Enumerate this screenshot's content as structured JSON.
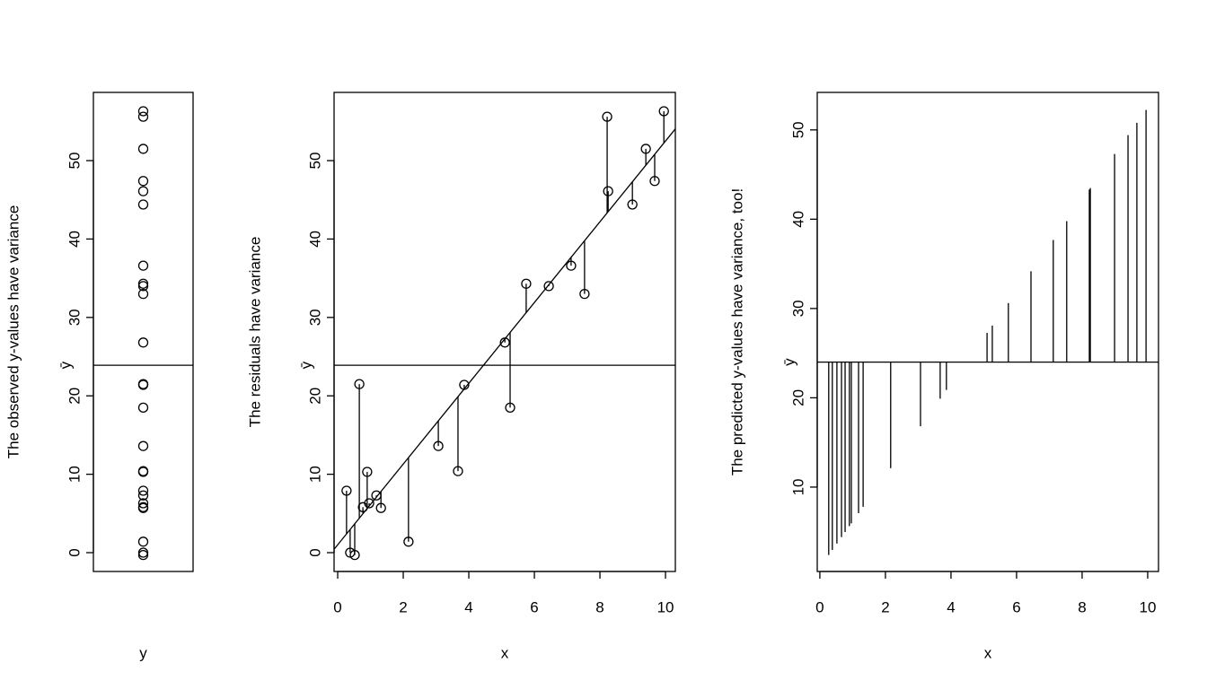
{
  "chart_data": [
    {
      "type": "strip",
      "y_label": "The observed y-values have variance",
      "x_label": "y",
      "values": [
        7.9,
        0.0,
        -0.3,
        21.5,
        5.8,
        10.3,
        6.3,
        7.3,
        5.7,
        1.4,
        13.6,
        10.4,
        21.4,
        26.8,
        18.5,
        34.3,
        34.0,
        36.6,
        33.0,
        55.6,
        46.1,
        44.4,
        51.5,
        47.4,
        56.3
      ],
      "ylim": [
        -2.4,
        58.7
      ],
      "yticks": [
        0,
        10,
        20,
        30,
        40,
        50
      ],
      "hline": 23.9,
      "hline_label": "ȳ"
    },
    {
      "type": "scatter",
      "y_label": "The residuals have variance",
      "x_label": "x",
      "x": [
        0.27,
        0.38,
        0.52,
        0.66,
        0.77,
        0.9,
        0.96,
        1.18,
        1.32,
        2.16,
        3.07,
        3.67,
        3.86,
        5.1,
        5.26,
        5.75,
        6.44,
        7.12,
        7.53,
        8.22,
        8.25,
        8.99,
        9.4,
        9.67,
        9.95
      ],
      "y": [
        7.9,
        0.0,
        -0.3,
        21.5,
        5.8,
        10.3,
        6.3,
        7.3,
        5.7,
        1.4,
        13.6,
        10.4,
        21.4,
        26.8,
        18.5,
        34.3,
        34.0,
        36.6,
        33.0,
        55.6,
        46.1,
        44.4,
        51.5,
        47.4,
        56.3
      ],
      "xlim": [
        -0.11,
        10.3
      ],
      "ylim": [
        -2.4,
        58.7
      ],
      "xticks": [
        0,
        2,
        4,
        6,
        8,
        10
      ],
      "yticks": [
        0,
        10,
        20,
        30,
        40,
        50
      ],
      "hline": 23.9,
      "hline_label": "ȳ",
      "intercept": 1.0,
      "slope": 5.15
    },
    {
      "type": "needle",
      "y_label": "The predicted y-values have variance, too!",
      "x_label": "x",
      "x": [
        0.27,
        0.38,
        0.52,
        0.66,
        0.77,
        0.9,
        0.96,
        1.18,
        1.32,
        2.16,
        3.07,
        3.67,
        3.86,
        5.1,
        5.26,
        5.75,
        6.44,
        7.12,
        7.53,
        8.22,
        8.25,
        8.99,
        9.4,
        9.67,
        9.95
      ],
      "values": [
        2.39,
        2.96,
        3.68,
        4.4,
        4.97,
        5.64,
        5.94,
        7.08,
        7.8,
        12.12,
        16.81,
        19.9,
        20.88,
        27.27,
        28.09,
        30.61,
        34.17,
        37.67,
        39.78,
        43.33,
        43.49,
        47.3,
        49.41,
        50.8,
        52.24
      ],
      "xlim": [
        -0.08,
        10.33
      ],
      "ylim": [
        0.55,
        54.2
      ],
      "xticks": [
        0,
        2,
        4,
        6,
        8,
        10
      ],
      "yticks": [
        10,
        20,
        30,
        40,
        50
      ],
      "hline": 24.0,
      "hline_label": "ȳ"
    }
  ]
}
